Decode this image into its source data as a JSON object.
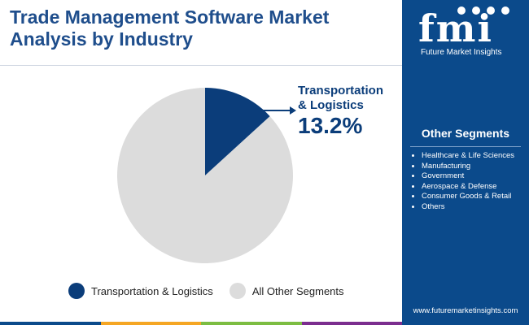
{
  "header": {
    "title": "Trade Management Software Market Analysis by Industry"
  },
  "brand": {
    "logo_text": "fmi",
    "name": "Future Market Insights",
    "website": "www.futuremarketinsights.com",
    "sidebar_color": "#0b4a8b"
  },
  "sidebar": {
    "heading": "Other Segments",
    "items": [
      "Healthcare & Life Sciences",
      "Manufacturing",
      "Government",
      "Aerospace & Defense",
      "Consumer Goods & Retail",
      "Others"
    ]
  },
  "chart_data": {
    "type": "pie",
    "title": "",
    "slices": [
      {
        "label": "Transportation & Logistics",
        "value": 13.2,
        "color": "#0b3d7a"
      },
      {
        "label": "All Other Segments",
        "value": 86.8,
        "color": "#dcdcdc"
      }
    ],
    "callout": {
      "label_line1": "Transportation",
      "label_line2": "& Logistics",
      "value_text": "13.2%"
    },
    "legend_position": "bottom"
  },
  "footer": {
    "stripe_colors": [
      "#0b4a8b",
      "#f5a623",
      "#7cbd42",
      "#7b2d8e"
    ]
  }
}
